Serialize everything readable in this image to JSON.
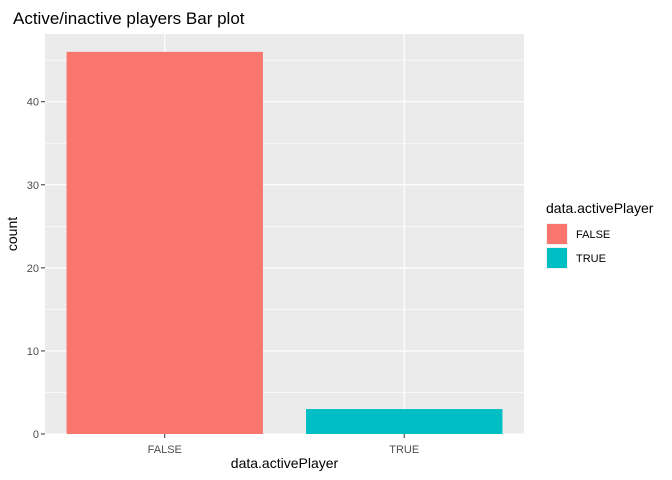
{
  "chart_data": {
    "type": "bar",
    "title": "Active/inactive players Bar plot",
    "xlabel": "data.activePlayer",
    "ylabel": "count",
    "categories": [
      "FALSE",
      "TRUE"
    ],
    "values": [
      46,
      3
    ],
    "colors": [
      "#F8766D",
      "#00BFC4"
    ],
    "ylim": [
      0,
      48.15
    ],
    "yticks": [
      0,
      10,
      20,
      30,
      40
    ],
    "yticks_minor": [
      5,
      15,
      25,
      35,
      45
    ],
    "grid": true,
    "background": "#EBEBEB",
    "legend": {
      "title": "data.activePlayer",
      "placement": "right",
      "entries": [
        {
          "label": "FALSE",
          "color": "#F8766D"
        },
        {
          "label": "TRUE",
          "color": "#00BFC4"
        }
      ]
    }
  }
}
